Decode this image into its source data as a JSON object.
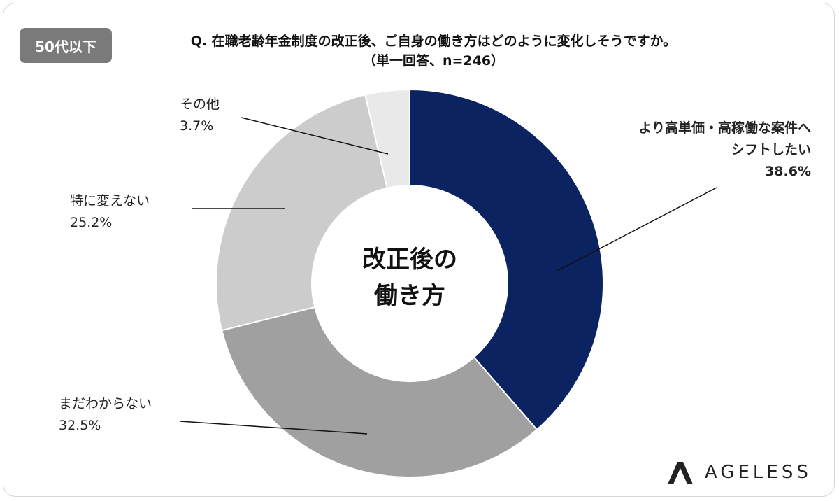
{
  "badge": "50代以下",
  "chart_data": {
    "type": "donut",
    "title": "Q. 在職老齢年金制度の改正後、ご自身の働き方はどのように変化しそうですか。",
    "subtitle": "（単一回答、n=246）",
    "center_label": "改正後の\n働き方",
    "categories": [
      "より高単価・高稼働な案件へ\nシフトしたい",
      "まだわからない",
      "特に変えない",
      "その他"
    ],
    "values": [
      38.6,
      32.5,
      25.2,
      3.7
    ],
    "value_labels": [
      "38.6%",
      "32.5%",
      "25.2%",
      "3.7%"
    ],
    "colors": [
      "#0b2361",
      "#a0a0a0",
      "#cccccc",
      "#e9e9e9"
    ]
  },
  "logo": "AGELESS"
}
